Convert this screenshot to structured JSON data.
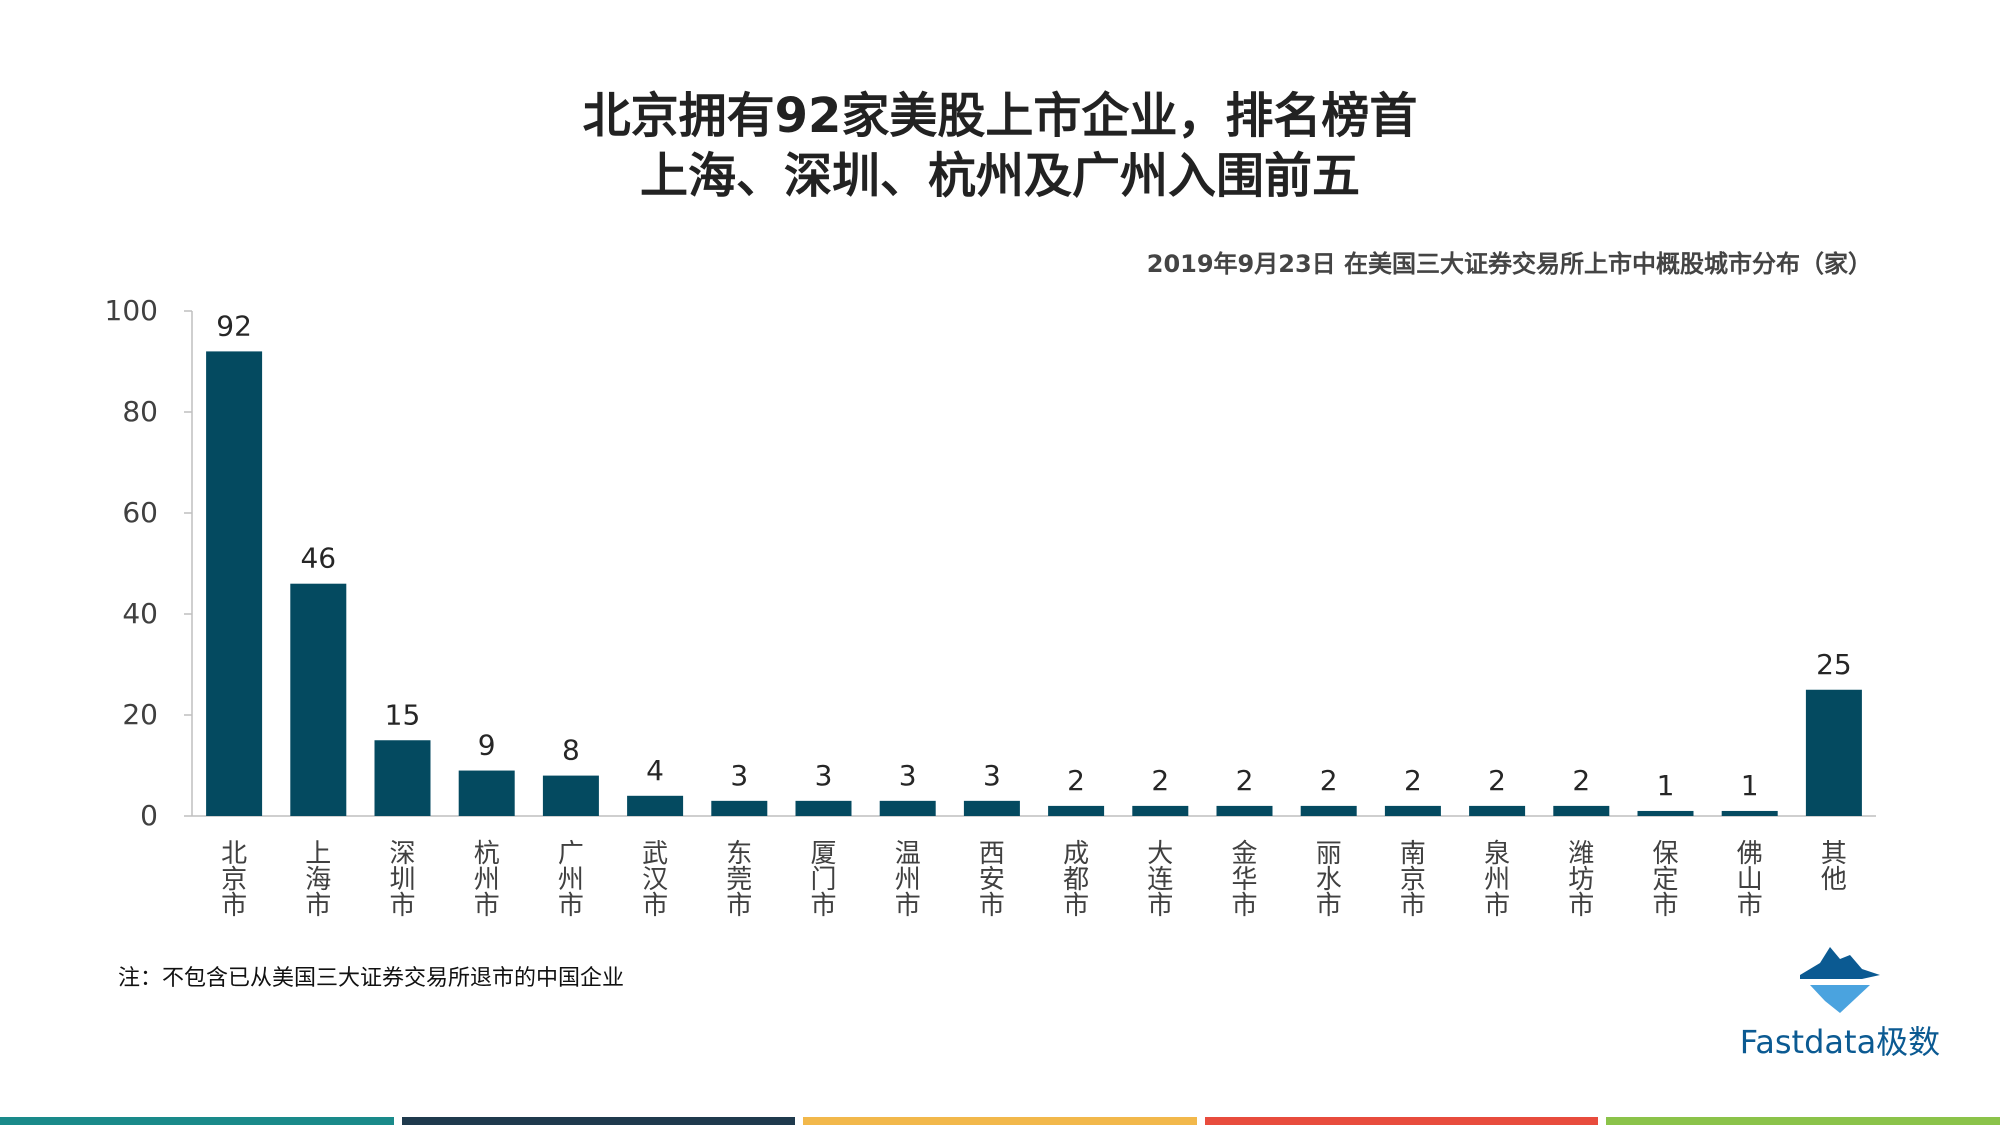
{
  "header": {
    "title_line1": "北京拥有92家美股上市企业，排名榜首",
    "title_line2": "上海、深圳、杭州及广州入围前五"
  },
  "chart_data": {
    "type": "bar",
    "title": "2019年9月23日 在美国三大证券交易所上市中概股城市分布（家）",
    "xlabel": "",
    "ylabel": "",
    "ylim": [
      0,
      100
    ],
    "yticks": [
      0,
      20,
      40,
      60,
      80,
      100
    ],
    "grid": false,
    "bar_color": "#044a60",
    "categories": [
      "北京市",
      "上海市",
      "深圳市",
      "杭州市",
      "广州市",
      "武汉市",
      "东莞市",
      "厦门市",
      "温州市",
      "西安市",
      "成都市",
      "大连市",
      "金华市",
      "丽水市",
      "南京市",
      "泉州市",
      "潍坊市",
      "保定市",
      "佛山市",
      "其他"
    ],
    "values": [
      92,
      46,
      15,
      9,
      8,
      4,
      3,
      3,
      3,
      3,
      2,
      2,
      2,
      2,
      2,
      2,
      2,
      1,
      1,
      25
    ]
  },
  "footer": {
    "note": "注：不包含已从美国三大证券交易所退市的中国企业",
    "logo_text": "Fastdata极数",
    "bar_colors": [
      "#1a8a8a",
      "#1f3a4d",
      "#f2b84b",
      "#e84c3d",
      "#8bc34a"
    ]
  }
}
